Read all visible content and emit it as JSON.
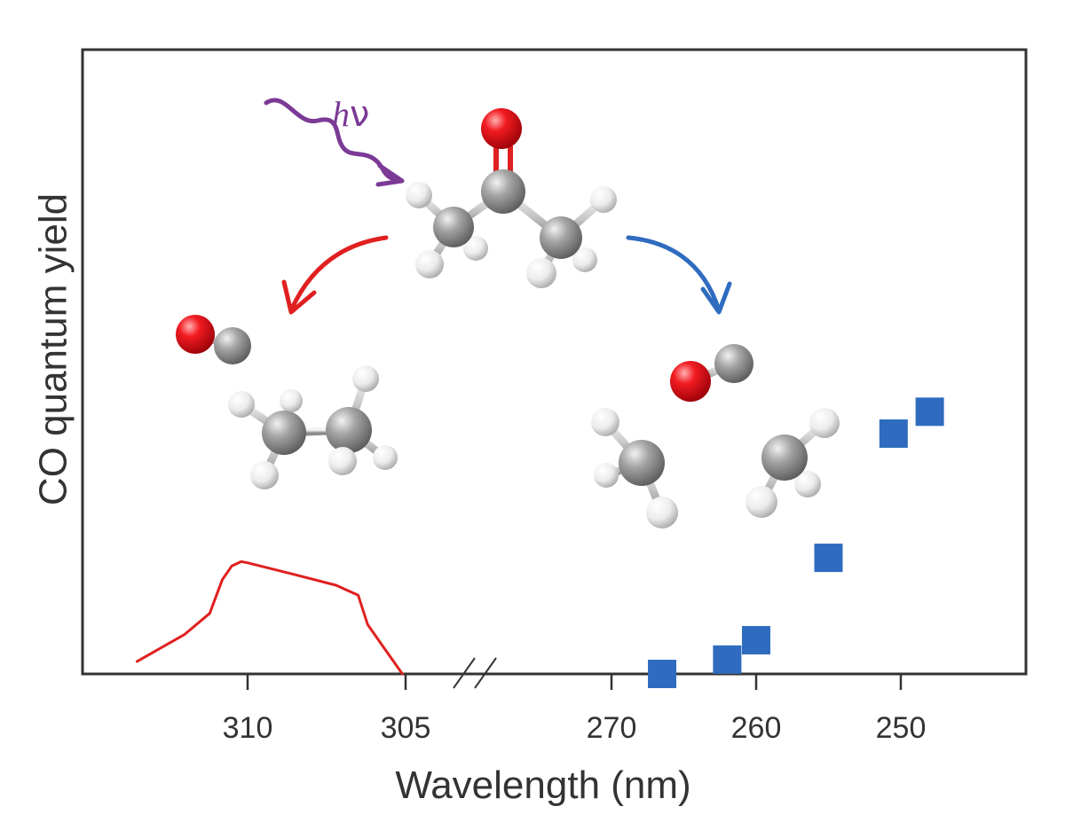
{
  "chart_data": {
    "type": "scatter",
    "title": "",
    "xlabel": "Wavelength (nm)",
    "ylabel": "CO quantum yield",
    "y_ticks_shown": false,
    "x_axis": {
      "reversed": true,
      "broken": true,
      "segments": [
        {
          "range": [
            315,
            304.9
          ],
          "ticks": [
            310,
            305
          ]
        },
        {
          "range": [
            278,
            240
          ],
          "ticks": [
            270,
            260,
            250
          ]
        }
      ],
      "tick_labels": [
        "310",
        "305",
        "270",
        "260",
        "250"
      ]
    },
    "ylim": [
      0,
      1
    ],
    "series": [
      {
        "name": "CO quantum yield (measured)",
        "marker": "square",
        "color": "#2f6cc0",
        "x": [
          266.5,
          262.0,
          260.0,
          255.0,
          250.5,
          248.0
        ],
        "y": [
          0.0,
          0.023,
          0.054,
          0.186,
          0.385,
          0.42
        ]
      },
      {
        "name": "Red curve (longer-wavelength range)",
        "style": "line",
        "color": "#e02020",
        "x": [
          313.5,
          312.0,
          311.2,
          310.8,
          310.5,
          310.2,
          310.0,
          308.5,
          307.2,
          306.5,
          306.2,
          305.6,
          305.1
        ],
        "y": [
          0.02,
          0.063,
          0.097,
          0.151,
          0.173,
          0.18,
          0.178,
          0.159,
          0.142,
          0.126,
          0.079,
          0.036,
          0.0
        ]
      }
    ],
    "annotations": [
      {
        "text": "hν",
        "color": "#7b3a96",
        "meaning": "incident photon on acetone"
      },
      {
        "text": "acetone → CO + ethane",
        "arrow_color": "#e02020"
      },
      {
        "text": "acetone → CO + 2 CH3",
        "arrow_color": "#2f6cc0"
      }
    ]
  },
  "labels": {
    "ylabel": "CO quantum yield",
    "xlabel": "Wavelength (nm)",
    "h": "h",
    "nu": "ν"
  },
  "colors": {
    "axis": "#333333",
    "blue": "#2f6cc0",
    "red": "#e02020",
    "purple": "#7b3a96",
    "oxygen": "#e8141c",
    "carbon": "#8a8a8a",
    "hydrogen": "#e6e6e6"
  }
}
